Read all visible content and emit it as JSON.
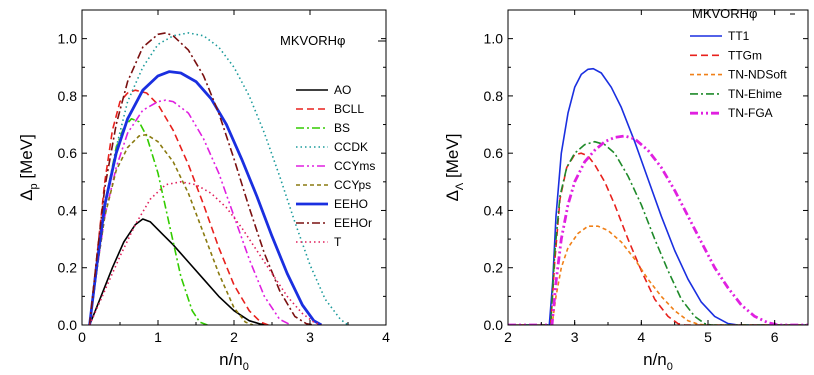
{
  "chart_data": [
    {
      "type": "line",
      "id": "left",
      "title": "MKVORHφ",
      "xlabel": "n/n",
      "xlabel_sub": "0",
      "ylabel": "Δ",
      "ylabel_sub": "p",
      "ylabel_unit": " [MeV]",
      "xlim": [
        0,
        4
      ],
      "ylim": [
        0,
        1.1
      ],
      "xticks": [
        0,
        1,
        2,
        3,
        4
      ],
      "yticks": [
        0.0,
        0.2,
        0.4,
        0.6,
        0.8,
        1.0
      ],
      "xtick_labels": [
        "0",
        "1",
        "2",
        "3",
        "4"
      ],
      "ytick_labels": [
        "0.0",
        "0.2",
        "0.4",
        "0.6",
        "0.8",
        "1.0"
      ],
      "legend_position": "top-right",
      "series": [
        {
          "name": "AO",
          "color": "#000000",
          "dash": "solid",
          "width": 1.6,
          "x": [
            0.1,
            0.25,
            0.4,
            0.55,
            0.7,
            0.8,
            0.9,
            1.05,
            1.2,
            1.4,
            1.6,
            1.8,
            2.0,
            2.2,
            2.35,
            2.45
          ],
          "y": [
            0.0,
            0.1,
            0.2,
            0.29,
            0.35,
            0.37,
            0.36,
            0.32,
            0.28,
            0.22,
            0.16,
            0.1,
            0.05,
            0.015,
            0.003,
            0.0
          ]
        },
        {
          "name": "BCLL",
          "color": "#e8211d",
          "dash": "dashed",
          "width": 1.6,
          "x": [
            0.1,
            0.2,
            0.3,
            0.4,
            0.5,
            0.6,
            0.7,
            0.85,
            1.0,
            1.2,
            1.4,
            1.6,
            1.8,
            2.0,
            2.2,
            2.35,
            2.45
          ],
          "y": [
            0.0,
            0.25,
            0.5,
            0.68,
            0.78,
            0.81,
            0.82,
            0.81,
            0.77,
            0.68,
            0.56,
            0.42,
            0.27,
            0.14,
            0.05,
            0.01,
            0.0
          ]
        },
        {
          "name": "BS",
          "color": "#33cc00",
          "dash": "dashdot",
          "width": 1.6,
          "x": [
            0.1,
            0.2,
            0.3,
            0.45,
            0.55,
            0.65,
            0.75,
            0.85,
            1.0,
            1.15,
            1.3,
            1.45,
            1.55,
            1.65
          ],
          "y": [
            0.0,
            0.2,
            0.42,
            0.62,
            0.69,
            0.72,
            0.71,
            0.66,
            0.53,
            0.35,
            0.17,
            0.05,
            0.01,
            0.0
          ]
        },
        {
          "name": "CCDK",
          "color": "#1b9b9b",
          "dash": "dotted",
          "width": 1.6,
          "x": [
            0.1,
            0.2,
            0.3,
            0.45,
            0.6,
            0.8,
            1.0,
            1.2,
            1.4,
            1.6,
            1.8,
            2.0,
            2.2,
            2.4,
            2.6,
            2.8,
            3.0,
            3.2,
            3.4,
            3.5
          ],
          "y": [
            0.0,
            0.2,
            0.4,
            0.62,
            0.78,
            0.9,
            0.98,
            1.01,
            1.02,
            1.01,
            0.97,
            0.9,
            0.8,
            0.67,
            0.52,
            0.36,
            0.21,
            0.09,
            0.02,
            0.0
          ]
        },
        {
          "name": "CCYms",
          "color": "#e020e0",
          "dash": "dashdotdot",
          "width": 1.6,
          "x": [
            0.1,
            0.2,
            0.3,
            0.45,
            0.6,
            0.8,
            1.0,
            1.1,
            1.2,
            1.4,
            1.6,
            1.8,
            2.0,
            2.2,
            2.4,
            2.6,
            2.75
          ],
          "y": [
            0.0,
            0.2,
            0.38,
            0.55,
            0.67,
            0.75,
            0.78,
            0.785,
            0.78,
            0.74,
            0.65,
            0.53,
            0.38,
            0.23,
            0.1,
            0.02,
            0.0
          ]
        },
        {
          "name": "CCYps",
          "color": "#8a7a10",
          "dash": "shortdash",
          "width": 1.6,
          "x": [
            0.1,
            0.2,
            0.3,
            0.45,
            0.6,
            0.75,
            0.85,
            1.0,
            1.2,
            1.4,
            1.6,
            1.8,
            2.0,
            2.15,
            2.25
          ],
          "y": [
            0.0,
            0.2,
            0.38,
            0.54,
            0.62,
            0.66,
            0.665,
            0.64,
            0.57,
            0.46,
            0.32,
            0.18,
            0.06,
            0.01,
            0.0
          ]
        },
        {
          "name": "EEHO",
          "color": "#1a2fe0",
          "dash": "solid",
          "width": 2.8,
          "x": [
            0.1,
            0.2,
            0.3,
            0.45,
            0.6,
            0.8,
            1.0,
            1.15,
            1.3,
            1.5,
            1.7,
            1.9,
            2.1,
            2.3,
            2.5,
            2.7,
            2.9,
            3.05,
            3.15
          ],
          "y": [
            0.0,
            0.22,
            0.42,
            0.6,
            0.72,
            0.82,
            0.87,
            0.885,
            0.88,
            0.85,
            0.79,
            0.7,
            0.58,
            0.45,
            0.31,
            0.18,
            0.07,
            0.015,
            0.0
          ]
        },
        {
          "name": "EEHOr",
          "color": "#7a1010",
          "dash": "dashdot",
          "width": 1.6,
          "x": [
            0.1,
            0.2,
            0.3,
            0.45,
            0.6,
            0.8,
            1.0,
            1.1,
            1.2,
            1.4,
            1.6,
            1.8,
            2.0,
            2.2,
            2.4,
            2.6,
            2.8,
            2.95,
            3.05
          ],
          "y": [
            0.0,
            0.25,
            0.48,
            0.7,
            0.85,
            0.97,
            1.015,
            1.02,
            1.01,
            0.96,
            0.87,
            0.74,
            0.58,
            0.41,
            0.25,
            0.12,
            0.03,
            0.005,
            0.0
          ]
        },
        {
          "name": "T",
          "color": "#e01e5a",
          "dash": "dotted",
          "width": 1.6,
          "x": [
            0.1,
            0.2,
            0.35,
            0.5,
            0.7,
            0.9,
            1.1,
            1.3,
            1.5,
            1.7,
            1.9,
            2.1,
            2.3,
            2.5,
            2.7,
            2.9,
            3.05,
            3.15
          ],
          "y": [
            0.0,
            0.06,
            0.15,
            0.24,
            0.35,
            0.44,
            0.49,
            0.5,
            0.49,
            0.46,
            0.41,
            0.34,
            0.26,
            0.18,
            0.1,
            0.04,
            0.01,
            0.0
          ]
        }
      ]
    },
    {
      "type": "line",
      "id": "right",
      "title": "MKVORHφ",
      "xlabel": "n/n",
      "xlabel_sub": "0",
      "ylabel": "Δ",
      "ylabel_sub": "Λ",
      "ylabel_unit": " [MeV]",
      "xlim": [
        2,
        6.5
      ],
      "ylim": [
        0,
        1.1
      ],
      "xticks": [
        2,
        3,
        4,
        5,
        6
      ],
      "yticks": [
        0.0,
        0.2,
        0.4,
        0.6,
        0.8,
        1.0
      ],
      "xtick_labels": [
        "2",
        "3",
        "4",
        "5",
        "6"
      ],
      "ytick_labels": [
        "0.0",
        "0.2",
        "0.4",
        "0.6",
        "0.8",
        "1.0"
      ],
      "legend_position": "top-right",
      "series": [
        {
          "name": "TT1",
          "color": "#1a2fe0",
          "dash": "solid",
          "width": 1.6,
          "x": [
            2.0,
            2.62,
            2.67,
            2.72,
            2.8,
            2.9,
            3.0,
            3.1,
            3.2,
            3.28,
            3.4,
            3.55,
            3.7,
            3.9,
            4.1,
            4.3,
            4.5,
            4.7,
            4.9,
            5.1,
            5.3,
            5.45,
            6.5
          ],
          "y": [
            0.0,
            0.0,
            0.15,
            0.38,
            0.6,
            0.74,
            0.83,
            0.875,
            0.893,
            0.895,
            0.88,
            0.83,
            0.76,
            0.64,
            0.51,
            0.38,
            0.26,
            0.16,
            0.08,
            0.03,
            0.005,
            0.0,
            0.0
          ]
        },
        {
          "name": "TTGm",
          "color": "#e8211d",
          "dash": "dashed",
          "width": 1.6,
          "x": [
            2.0,
            2.64,
            2.7,
            2.78,
            2.88,
            3.0,
            3.1,
            3.2,
            3.3,
            3.45,
            3.6,
            3.8,
            4.0,
            4.2,
            4.4,
            4.55,
            4.65,
            6.5
          ],
          "y": [
            0.0,
            0.0,
            0.22,
            0.44,
            0.55,
            0.595,
            0.6,
            0.59,
            0.56,
            0.5,
            0.42,
            0.3,
            0.19,
            0.09,
            0.03,
            0.005,
            0.0,
            0.0
          ]
        },
        {
          "name": "TN-NDSoft",
          "color": "#f08018",
          "dash": "shortdash",
          "width": 1.6,
          "x": [
            2.0,
            2.66,
            2.72,
            2.8,
            2.9,
            3.05,
            3.2,
            3.35,
            3.5,
            3.7,
            3.9,
            4.1,
            4.3,
            4.5,
            4.7,
            4.85,
            4.95,
            6.5
          ],
          "y": [
            0.0,
            0.0,
            0.1,
            0.2,
            0.27,
            0.32,
            0.345,
            0.345,
            0.33,
            0.29,
            0.23,
            0.16,
            0.1,
            0.05,
            0.015,
            0.003,
            0.0,
            0.0
          ]
        },
        {
          "name": "TN-Ehime",
          "color": "#1f8a2a",
          "dash": "dashdot",
          "width": 1.6,
          "x": [
            2.0,
            2.64,
            2.7,
            2.78,
            2.88,
            3.0,
            3.15,
            3.3,
            3.45,
            3.6,
            3.8,
            4.0,
            4.2,
            4.4,
            4.6,
            4.8,
            4.95,
            5.05,
            6.5
          ],
          "y": [
            0.0,
            0.0,
            0.25,
            0.45,
            0.55,
            0.6,
            0.63,
            0.64,
            0.63,
            0.6,
            0.52,
            0.42,
            0.3,
            0.19,
            0.09,
            0.03,
            0.005,
            0.0,
            0.0
          ]
        },
        {
          "name": "TN-FGA",
          "color": "#e020e0",
          "dash": "dashdotdot",
          "width": 2.8,
          "x": [
            2.0,
            2.66,
            2.72,
            2.8,
            2.9,
            3.0,
            3.15,
            3.3,
            3.45,
            3.6,
            3.75,
            3.9,
            4.1,
            4.3,
            4.5,
            4.7,
            4.9,
            5.1,
            5.3,
            5.5,
            5.7,
            5.9,
            6.05,
            6.5
          ],
          "y": [
            0.0,
            0.0,
            0.15,
            0.3,
            0.42,
            0.5,
            0.57,
            0.61,
            0.64,
            0.655,
            0.66,
            0.65,
            0.61,
            0.55,
            0.47,
            0.38,
            0.29,
            0.2,
            0.13,
            0.07,
            0.03,
            0.008,
            0.0,
            0.0
          ]
        }
      ]
    }
  ]
}
